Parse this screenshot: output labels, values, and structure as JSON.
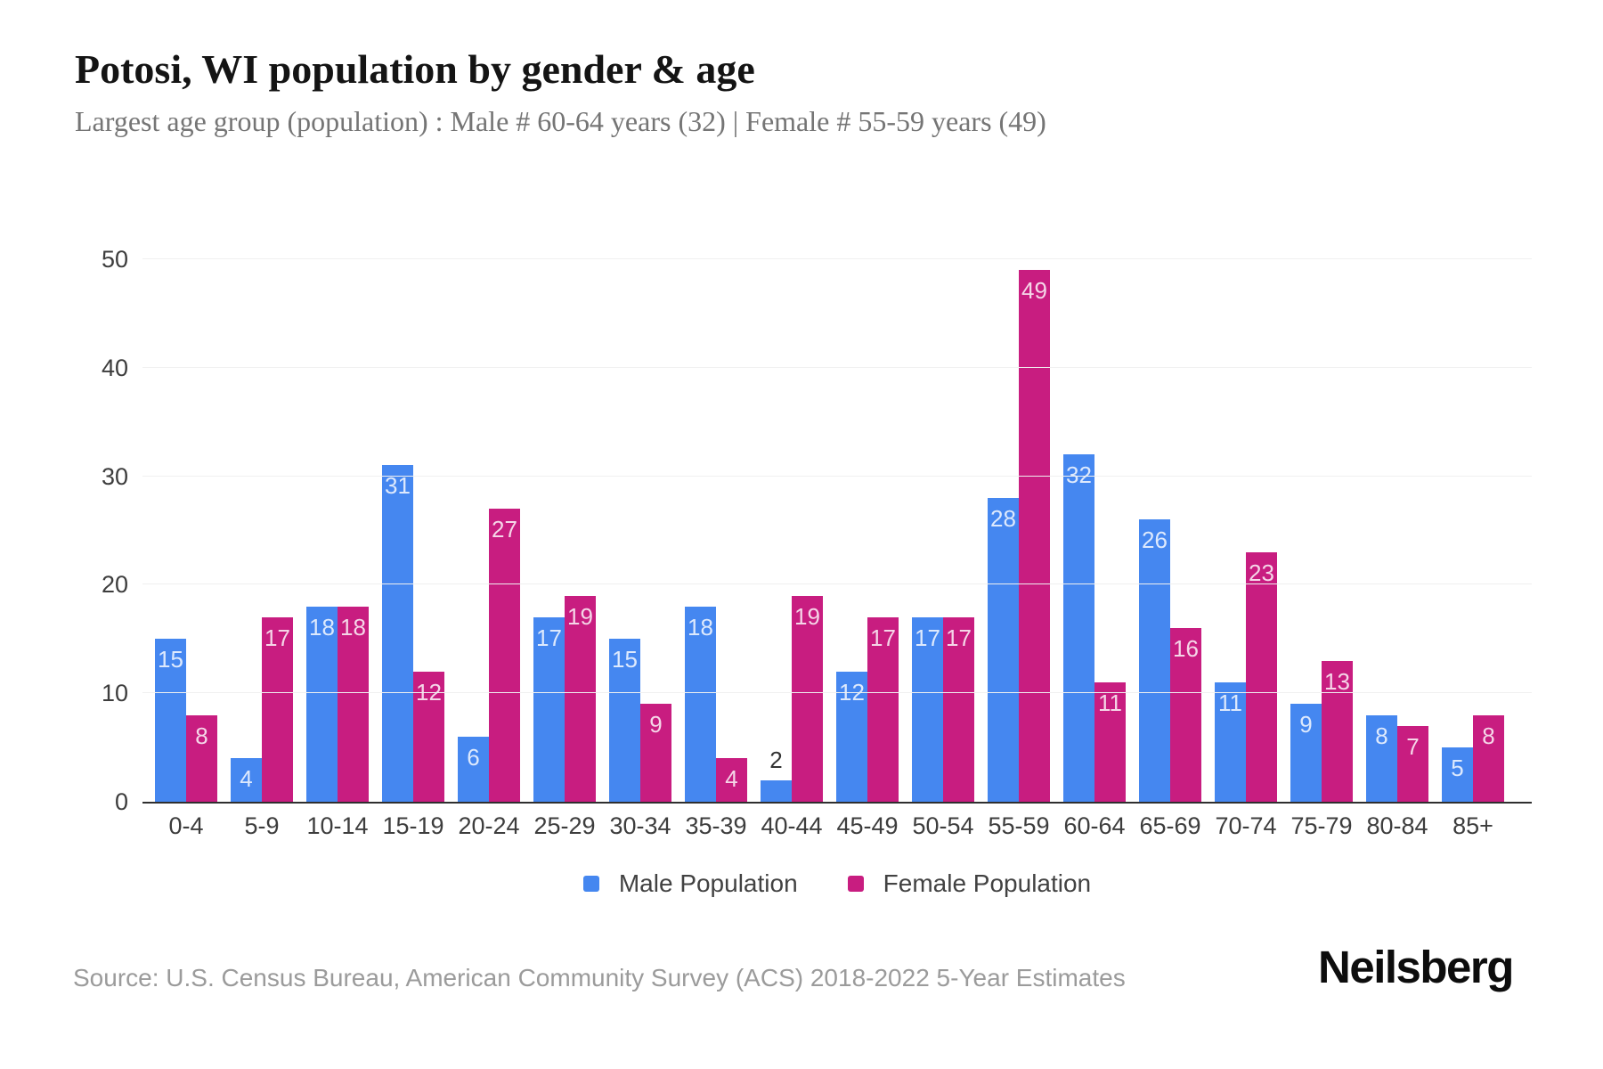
{
  "header": {
    "title": "Potosi, WI population by gender & age",
    "subtitle": "Largest age group (population) : Male # 60-64 years (32) | Female # 55-59 years (49)"
  },
  "colors": {
    "male": "#4587F0",
    "female": "#C81D80",
    "grid": "#F0F0F0",
    "axis": "#2F2F2F",
    "tick_text": "#3D3D3D",
    "value_label_on_bar": "rgba(255,255,255,0.82)",
    "value_label_outside": "#333333"
  },
  "chart_data": {
    "type": "bar",
    "title": "Potosi, WI population by gender & age",
    "xlabel": "",
    "ylabel": "",
    "ylim": [
      0,
      50
    ],
    "yticks": [
      0,
      10,
      20,
      30,
      40,
      50
    ],
    "grid": true,
    "legend_position": "bottom",
    "categories": [
      "0-4",
      "5-9",
      "10-14",
      "15-19",
      "20-24",
      "25-29",
      "30-34",
      "35-39",
      "40-44",
      "45-49",
      "50-54",
      "55-59",
      "60-64",
      "65-69",
      "70-74",
      "75-79",
      "80-84",
      "85+"
    ],
    "series": [
      {
        "name": "Male Population",
        "color_key": "male",
        "values": [
          15,
          4,
          18,
          31,
          6,
          17,
          15,
          18,
          2,
          12,
          17,
          28,
          32,
          26,
          11,
          9,
          8,
          5
        ]
      },
      {
        "name": "Female Population",
        "color_key": "female",
        "values": [
          8,
          17,
          18,
          12,
          27,
          19,
          9,
          4,
          19,
          17,
          17,
          49,
          11,
          16,
          23,
          13,
          7,
          8
        ]
      }
    ]
  },
  "legend": {
    "items": [
      {
        "label": "Male Population",
        "color_key": "male"
      },
      {
        "label": "Female Population",
        "color_key": "female"
      }
    ]
  },
  "footer": {
    "source": "Source: U.S. Census Bureau, American Community Survey (ACS) 2018-2022 5-Year Estimates",
    "brand": "Neilsberg"
  }
}
